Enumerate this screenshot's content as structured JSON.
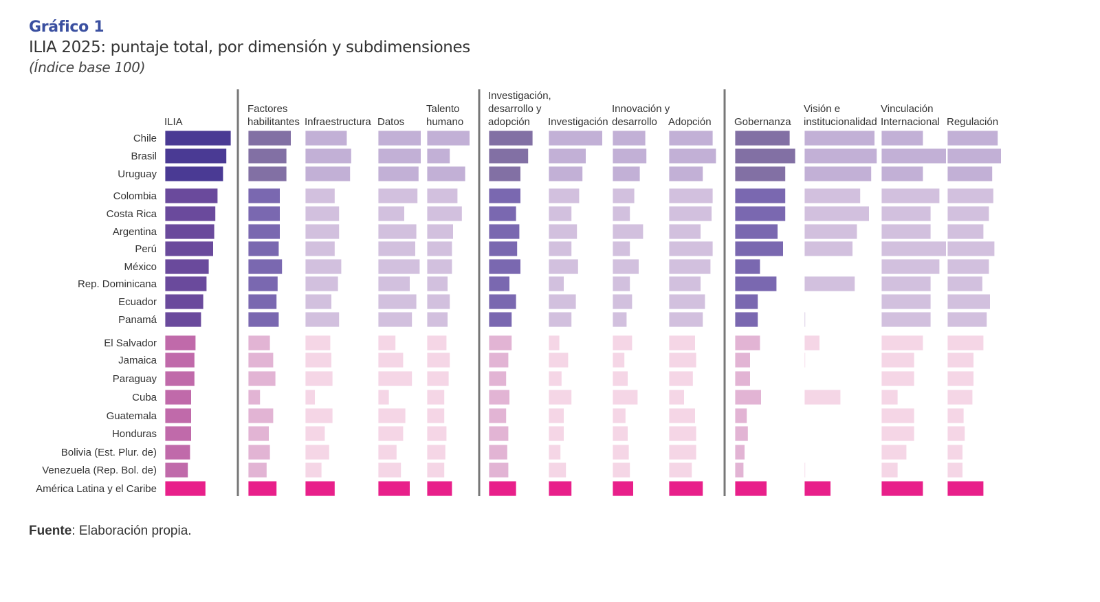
{
  "header": {
    "figure_number": "Gráfico 1",
    "title": "ILIA 2025: puntaje total, por dimensión y subdimensiones",
    "subtitle": "(Índice base 100)"
  },
  "footer": {
    "source_label": "Fuente",
    "source_text": ": Elaboración propia."
  },
  "colors": {
    "tier1_main": "#4a3a94",
    "tier2_main": "#6a4a9c",
    "tier3_main": "#c06aaa",
    "tier1_dim": "#8270a4",
    "tier2_dim": "#7a68b0",
    "tier3_dim": "#e2b4d4",
    "tier1_sub": "#c2b0d6",
    "tier2_sub": "#d2c0de",
    "tier3_sub": "#f5d6e6",
    "regional": "#e8208a",
    "divider": "#777777"
  },
  "chart_data": {
    "type": "bar",
    "orientation": "horizontal",
    "title": "ILIA 2025: puntaje total, por dimensión y subdimensiones",
    "subtitle": "(Índice base 100)",
    "xlabel": "",
    "ylabel": "",
    "xlim": [
      0,
      100
    ],
    "grid": false,
    "legend": "none",
    "categories": [
      "Chile",
      "Brasil",
      "Uruguay",
      "Colombia",
      "Costa Rica",
      "Argentina",
      "Perú",
      "México",
      "Rep. Dominicana",
      "Ecuador",
      "Panamá",
      "El Salvador",
      "Jamaica",
      "Paraguay",
      "Cuba",
      "Guatemala",
      "Honduras",
      "Bolivia (Est. Plur. de)",
      "Venezuela (Rep. Bol. de)",
      "América Latina y el Caribe"
    ],
    "tiers": [
      1,
      1,
      1,
      2,
      2,
      2,
      2,
      2,
      2,
      2,
      2,
      3,
      3,
      3,
      3,
      3,
      3,
      3,
      3,
      4
    ],
    "series": [
      {
        "name": "ILIA",
        "level": "total",
        "label_lines": [
          "ILIA"
        ],
        "values": [
          60,
          56,
          53,
          48,
          46,
          45,
          44,
          40,
          38,
          35,
          33,
          28,
          27,
          27,
          24,
          24,
          24,
          23,
          21,
          37
        ]
      },
      {
        "name": "Factores habilitantes",
        "level": "dimension",
        "label_lines": [
          "Factores",
          "habilitantes"
        ],
        "values": [
          39,
          35,
          35,
          29,
          29,
          29,
          28,
          31,
          27,
          26,
          28,
          20,
          23,
          25,
          11,
          23,
          19,
          20,
          17,
          26
        ]
      },
      {
        "name": "Infraestructura",
        "level": "sub",
        "label_lines": [
          "Infraestructura"
        ],
        "values": [
          38,
          42,
          41,
          27,
          31,
          31,
          27,
          33,
          30,
          24,
          31,
          23,
          24,
          25,
          9,
          25,
          18,
          22,
          15,
          27
        ]
      },
      {
        "name": "Datos",
        "level": "sub",
        "label_lines": [
          "Datos"
        ],
        "values": [
          39,
          39,
          37,
          36,
          24,
          35,
          34,
          38,
          29,
          35,
          31,
          16,
          23,
          31,
          10,
          25,
          23,
          17,
          21,
          29
        ]
      },
      {
        "name": "Talento humano",
        "level": "sub",
        "label_lines": [
          "Talento",
          "humano"
        ],
        "values": [
          39,
          21,
          35,
          28,
          32,
          24,
          23,
          23,
          19,
          21,
          19,
          18,
          21,
          20,
          16,
          16,
          18,
          17,
          16,
          23
        ]
      },
      {
        "name": "Investigación, desarrollo y adopción",
        "level": "dimension",
        "label_lines": [
          "Investigación,",
          "desarrollo y",
          "adopción"
        ],
        "values": [
          40,
          36,
          29,
          29,
          25,
          28,
          26,
          29,
          19,
          25,
          21,
          21,
          18,
          16,
          19,
          16,
          18,
          17,
          18,
          25
        ]
      },
      {
        "name": "Investigación",
        "level": "sub",
        "label_lines": [
          "Investigación"
        ],
        "values": [
          49,
          34,
          31,
          28,
          21,
          26,
          21,
          27,
          14,
          25,
          21,
          10,
          18,
          12,
          21,
          14,
          14,
          11,
          16,
          21
        ]
      },
      {
        "name": "Innovación y desarrollo",
        "level": "sub",
        "label_lines": [
          "Innovación y",
          "desarrollo"
        ],
        "values": [
          30,
          31,
          25,
          20,
          16,
          28,
          16,
          24,
          16,
          18,
          13,
          18,
          11,
          14,
          23,
          12,
          14,
          15,
          16,
          19
        ]
      },
      {
        "name": "Adopción",
        "level": "sub",
        "label_lines": [
          "Adopción"
        ],
        "values": [
          40,
          43,
          31,
          40,
          39,
          29,
          40,
          38,
          29,
          33,
          31,
          24,
          25,
          22,
          14,
          24,
          25,
          25,
          21,
          31
        ]
      },
      {
        "name": "Gobernanza",
        "level": "dimension",
        "label_lines": [
          "Gobernanza"
        ],
        "values": [
          50,
          55,
          46,
          46,
          46,
          39,
          44,
          23,
          38,
          21,
          21,
          23,
          14,
          14,
          24,
          11,
          12,
          9,
          8,
          29
        ]
      },
      {
        "name": "Visión e institucionalidad",
        "level": "sub",
        "label_lines": [
          "Visión e",
          "institucionalidad"
        ],
        "values": [
          64,
          66,
          61,
          51,
          59,
          48,
          44,
          0,
          46,
          0,
          1,
          14,
          1,
          0,
          33,
          0,
          0,
          0,
          1,
          24
        ]
      },
      {
        "name": "Vinculación Internacional",
        "level": "sub",
        "label_lines": [
          "Vinculación",
          "Internacional"
        ],
        "values": [
          38,
          59,
          38,
          53,
          45,
          45,
          59,
          53,
          45,
          45,
          45,
          38,
          30,
          30,
          15,
          30,
          30,
          23,
          15,
          38
        ]
      },
      {
        "name": "Regulación",
        "level": "sub",
        "label_lines": [
          "Regulación"
        ],
        "values": [
          46,
          49,
          41,
          42,
          38,
          33,
          43,
          38,
          32,
          39,
          36,
          33,
          24,
          24,
          23,
          15,
          16,
          14,
          14,
          33
        ]
      }
    ]
  }
}
